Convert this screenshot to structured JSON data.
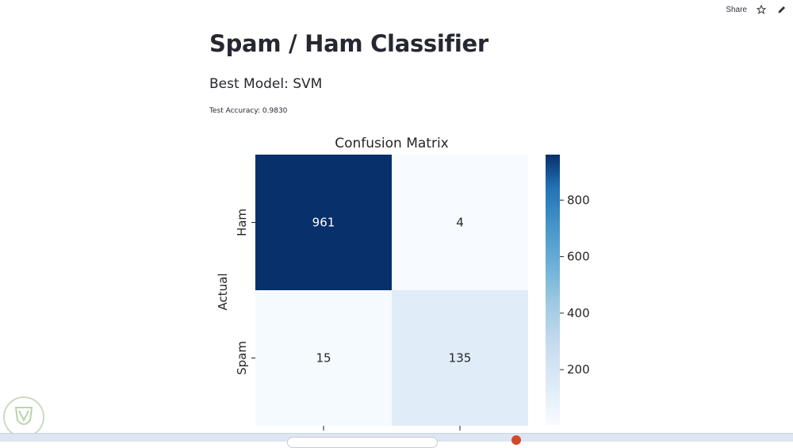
{
  "toolbar": {
    "share_label": "Share",
    "icons": [
      "star-icon",
      "pencil-icon"
    ]
  },
  "page": {
    "title": "Spam / Ham Classifier",
    "best_model": "Best Model: SVM",
    "accuracy_text": "Test Accuracy: 0.9830"
  },
  "chart_data": {
    "type": "heatmap",
    "title": "Confusion Matrix",
    "ylabel": "Actual",
    "xlabel": "",
    "rows": [
      "Ham",
      "Spam"
    ],
    "cols": [
      "",
      ""
    ],
    "values": [
      [
        961,
        4
      ],
      [
        15,
        135
      ]
    ],
    "colormap": "Blues",
    "colorbar": {
      "ticks": [
        200,
        400,
        600,
        800
      ],
      "range": [
        4,
        961
      ]
    },
    "colors": {
      "low": "#f7fbff",
      "mid": "#6baed6",
      "high": "#08306b"
    }
  }
}
